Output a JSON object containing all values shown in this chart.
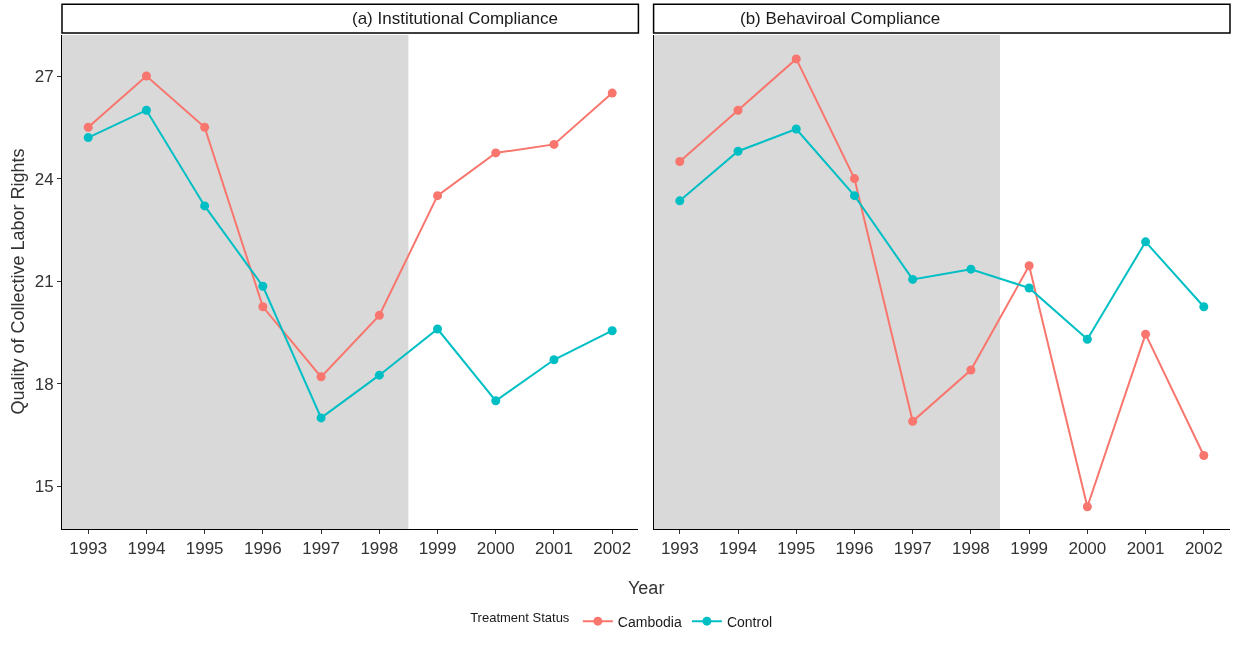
{
  "chart_data": [
    {
      "type": "line",
      "title": "(a) Institutional Compliance",
      "xlabel": "Year",
      "ylabel": "Quality of Collective Labor Rights",
      "legend_title": "Treatment Status",
      "legend": "bottom",
      "grid": false,
      "marker": "circle",
      "line_style": "solid",
      "x": [
        1993,
        1994,
        1995,
        1996,
        1997,
        1998,
        1999,
        2000,
        2001,
        2002
      ],
      "xlim": [
        1992.55,
        2002.45
      ],
      "xticks": [
        1993,
        1994,
        1995,
        1996,
        1997,
        1998,
        1999,
        2000,
        2001,
        2002
      ],
      "ylim": [
        13.75,
        28.2
      ],
      "yticks": [
        15,
        18,
        21,
        24,
        27
      ],
      "series": [
        {
          "name": "Cambodia",
          "color": "#f8766d",
          "values": [
            25.5,
            27.0,
            25.5,
            20.25,
            18.2,
            20.0,
            23.5,
            24.75,
            25.0,
            26.5
          ]
        },
        {
          "name": "Control",
          "color": "#00bfc4",
          "values": [
            25.2,
            26.0,
            23.2,
            20.85,
            17.0,
            18.25,
            19.6,
            17.5,
            18.7,
            19.55
          ]
        }
      ],
      "bands": [
        {
          "axis": "x",
          "from": 1992.55,
          "to": 1998.5,
          "color": "#d9d9d9"
        }
      ]
    },
    {
      "type": "line",
      "title": "(b) Behaviroal Compliance",
      "grid": false,
      "marker": "circle",
      "line_style": "solid",
      "tick_labels": "x",
      "x": [
        1993,
        1994,
        1995,
        1996,
        1997,
        1998,
        1999,
        2000,
        2001,
        2002
      ],
      "xlim": [
        1992.55,
        2002.45
      ],
      "xticks": [
        1993,
        1994,
        1995,
        1996,
        1997,
        1998,
        1999,
        2000,
        2001,
        2002
      ],
      "ylim": [
        13.75,
        28.2
      ],
      "yticks": [
        15,
        18,
        21,
        24,
        27
      ],
      "series": [
        {
          "color": "#f8766d",
          "values": [
            24.5,
            26.0,
            27.5,
            24.0,
            16.9,
            18.4,
            21.45,
            14.4,
            19.45,
            15.9
          ]
        },
        {
          "color": "#00bfc4",
          "values": [
            23.35,
            24.8,
            25.45,
            23.5,
            21.05,
            21.35,
            20.8,
            19.3,
            22.15,
            20.25
          ]
        }
      ],
      "bands": [
        {
          "axis": "x",
          "from": 1992.55,
          "to": 1998.5,
          "color": "#d9d9d9"
        }
      ]
    }
  ]
}
